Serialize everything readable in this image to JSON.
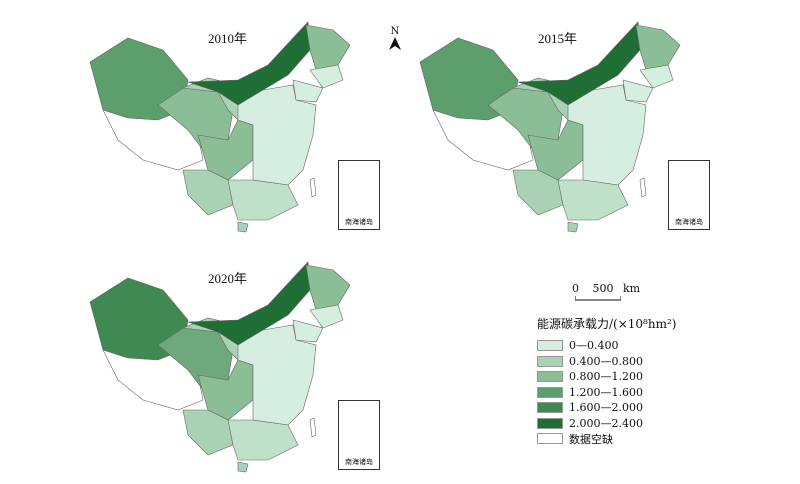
{
  "maps": [
    {
      "year": "2010年",
      "colors": {
        "xj": "#5c9f6c",
        "xz": "#ffffff",
        "qh": "#8bbd96",
        "gs": "#a9d1b3",
        "nm": "#1e6e36",
        "hlj": "#8bbd96",
        "jl": "#d6eedf",
        "ln": "#d6eedf",
        "sc": "#8bbd96",
        "yn": "#a9d1b3",
        "east": "#d6eedf",
        "south": "#c0e1c9",
        "hainan": "#a9d1b3",
        "tw": "#ffffff"
      }
    },
    {
      "year": "2015年",
      "colors": {
        "xj": "#5c9f6c",
        "xz": "#ffffff",
        "qh": "#8bbd96",
        "gs": "#a9d1b3",
        "nm": "#1e6e36",
        "hlj": "#8bbd96",
        "jl": "#d6eedf",
        "ln": "#d6eedf",
        "sc": "#8bbd96",
        "yn": "#a9d1b3",
        "east": "#d6eedf",
        "south": "#c0e1c9",
        "hainan": "#a9d1b3",
        "tw": "#ffffff"
      }
    },
    {
      "year": "2020年",
      "colors": {
        "xj": "#3f8a52",
        "xz": "#ffffff",
        "qh": "#6ea97b",
        "gs": "#a9d1b3",
        "nm": "#1e6e36",
        "hlj": "#8bbd96",
        "jl": "#d6eedf",
        "ln": "#d6eedf",
        "sc": "#8bbd96",
        "yn": "#a9d1b3",
        "east": "#d6eedf",
        "south": "#c0e1c9",
        "hainan": "#a9d1b3",
        "tw": "#ffffff"
      }
    }
  ],
  "inset_label": "南海诸岛",
  "north_label": "N",
  "scale": {
    "zero": "0",
    "value": "500",
    "unit": "km"
  },
  "legend": {
    "title": "能源碳承载力/(×10⁸hm²)",
    "items": [
      {
        "label": "0—0.400",
        "color": "#d6eedf"
      },
      {
        "label": "0.400—0.800",
        "color": "#a9d1b3"
      },
      {
        "label": "0.800—1.200",
        "color": "#8bbd96"
      },
      {
        "label": "1.200—1.600",
        "color": "#5c9f6c"
      },
      {
        "label": "1.600—2.000",
        "color": "#3f8a52"
      },
      {
        "label": "2.000—2.400",
        "color": "#1e6e36"
      },
      {
        "label": "数据空缺",
        "color": "#ffffff"
      }
    ]
  }
}
